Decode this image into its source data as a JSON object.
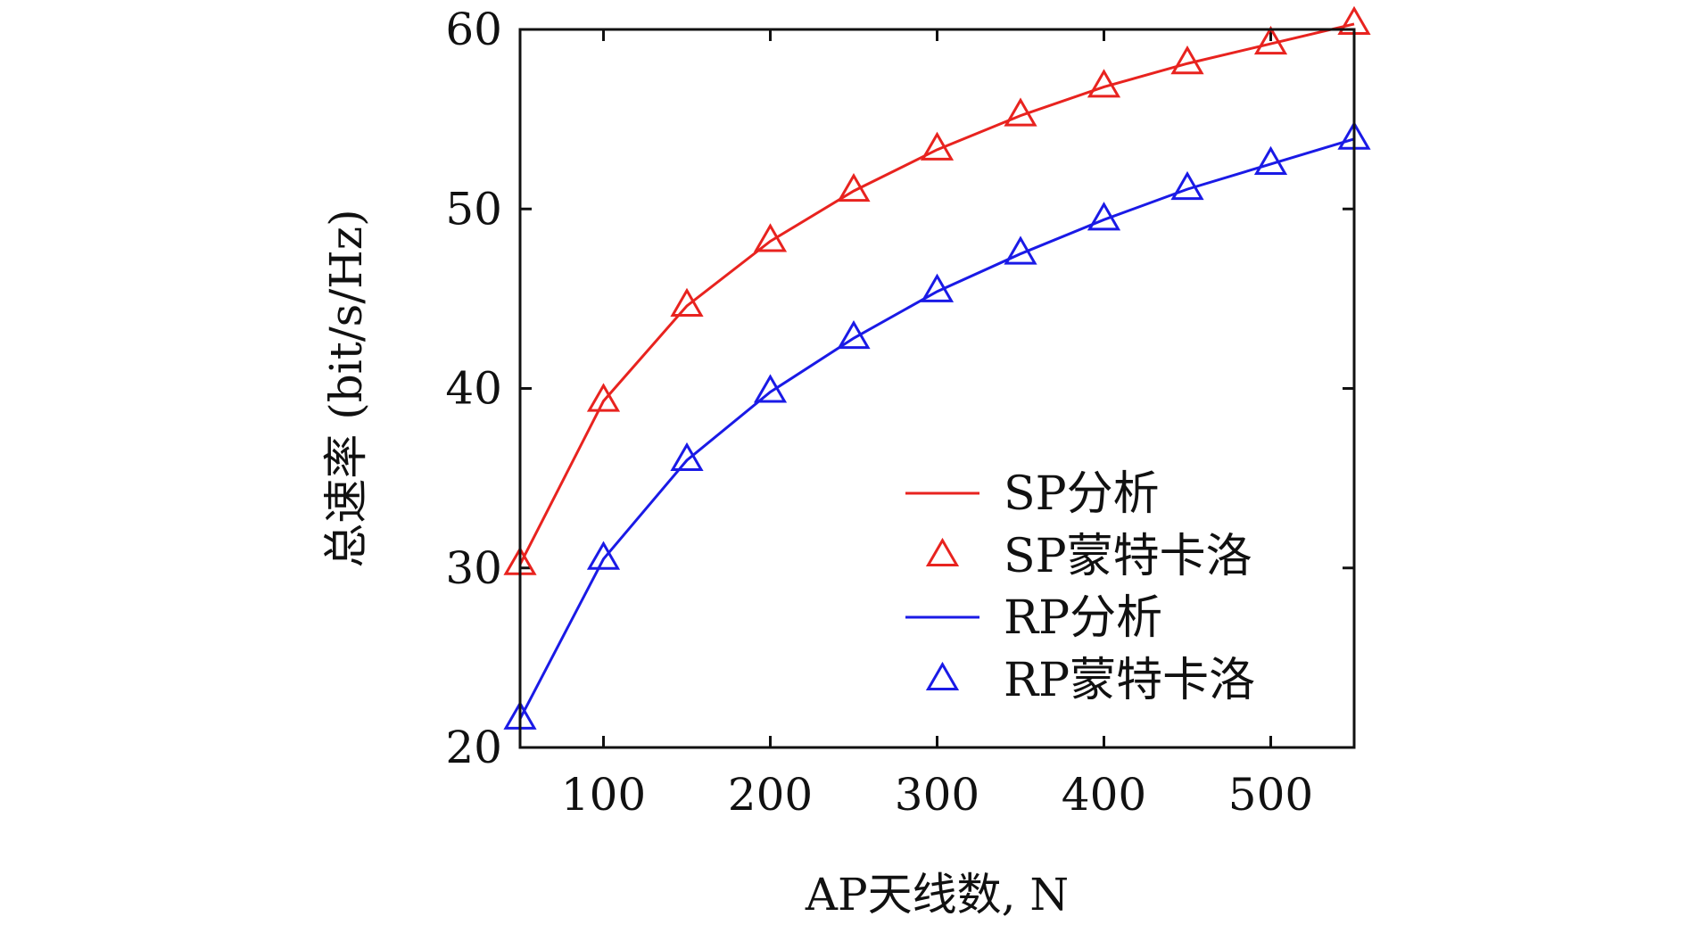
{
  "chart_data": {
    "type": "line",
    "xlabel": "AP天线数, N",
    "ylabel": "总速率 (bit/s/Hz)",
    "xlim": [
      50,
      550
    ],
    "ylim": [
      20,
      60
    ],
    "xticks": [
      100,
      200,
      300,
      400,
      500
    ],
    "yticks": [
      20,
      30,
      40,
      50,
      60
    ],
    "xtick_labels": [
      "100",
      "200",
      "300",
      "400",
      "500"
    ],
    "ytick_labels": [
      "20",
      "30",
      "40",
      "50",
      "60"
    ],
    "grid": false,
    "legend_position": "bottom-right",
    "x": [
      50,
      100,
      150,
      200,
      250,
      300,
      350,
      400,
      450,
      500,
      550
    ],
    "series": [
      {
        "name": "SP分析",
        "style": "line",
        "color": "#e8231f",
        "values": [
          30.2,
          39.3,
          44.6,
          48.2,
          51.0,
          53.3,
          55.2,
          56.8,
          58.1,
          59.2,
          60.3
        ]
      },
      {
        "name": "SP蒙特卡洛",
        "style": "marker",
        "marker": "triangle",
        "color": "#e8231f",
        "values": [
          30.2,
          39.3,
          44.6,
          48.2,
          51.0,
          53.3,
          55.2,
          56.8,
          58.1,
          59.2,
          60.3
        ]
      },
      {
        "name": "RP分析",
        "style": "line",
        "color": "#1a1ae6",
        "values": [
          21.6,
          30.5,
          36.0,
          39.8,
          42.8,
          45.4,
          47.5,
          49.4,
          51.1,
          52.5,
          53.9
        ]
      },
      {
        "name": "RP蒙特卡洛",
        "style": "marker",
        "marker": "triangle",
        "color": "#1a1ae6",
        "values": [
          21.6,
          30.5,
          36.0,
          39.8,
          42.8,
          45.4,
          47.5,
          49.4,
          51.1,
          52.5,
          53.9
        ]
      }
    ]
  }
}
